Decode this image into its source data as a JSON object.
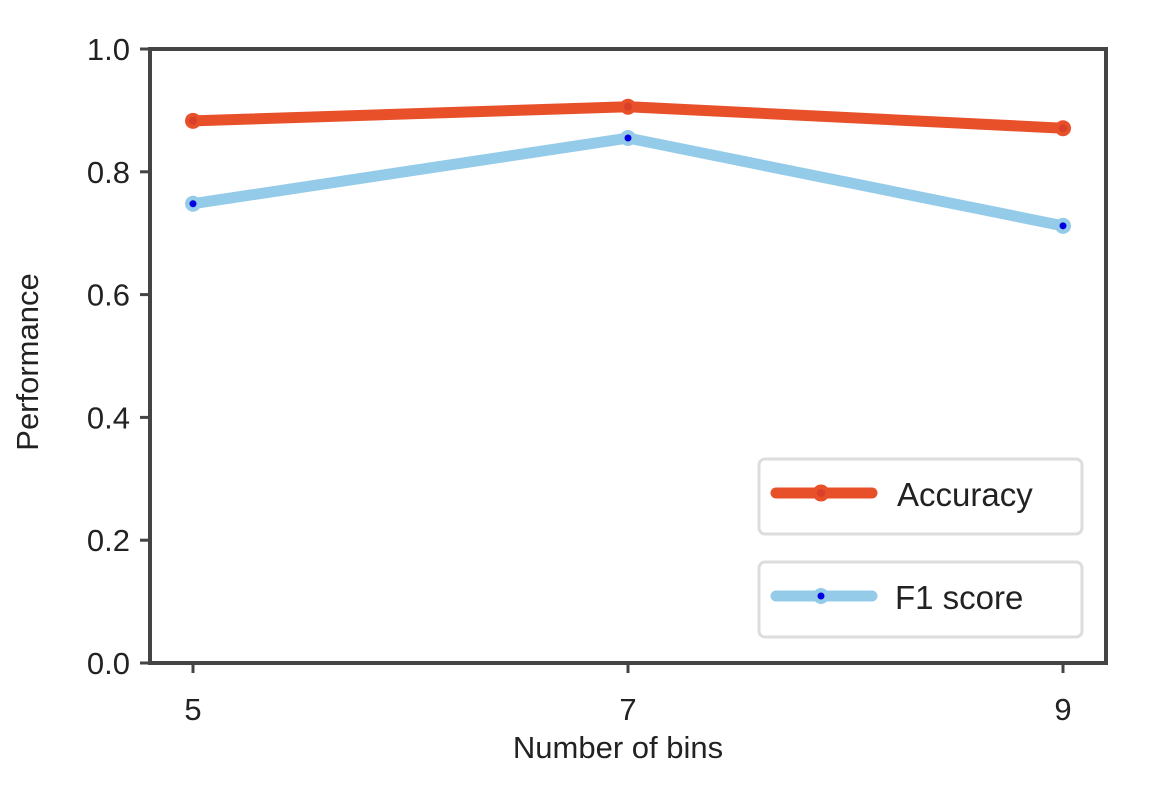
{
  "chart_data": {
    "type": "line",
    "title": "",
    "xlabel": "Number of bins",
    "ylabel": "Performance",
    "x": [
      5,
      7,
      9
    ],
    "categories": [
      "5",
      "7",
      "9"
    ],
    "xticks": [
      "5",
      "7",
      "9"
    ],
    "yticks": [
      "0.0",
      "0.2",
      "0.4",
      "0.6",
      "0.8",
      "1.0"
    ],
    "ylim": [
      0.0,
      1.0
    ],
    "grid": false,
    "legend_position": "lower right",
    "series": [
      {
        "name": "Accuracy",
        "values": [
          0.883,
          0.906,
          0.871
        ],
        "color": "#e8502a",
        "marker_color": "#e8502a"
      },
      {
        "name": "F1 score",
        "values": [
          0.748,
          0.855,
          0.712
        ],
        "color": "#94cbe8",
        "marker_color": "#0000e0"
      }
    ]
  }
}
